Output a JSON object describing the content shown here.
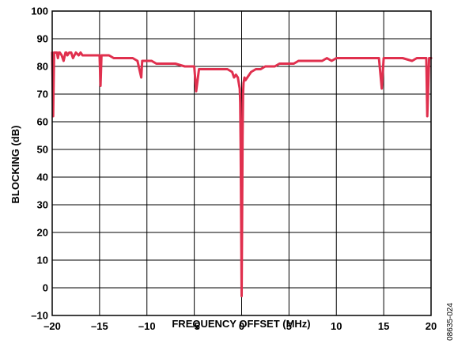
{
  "chart_data": {
    "type": "line",
    "title": "",
    "xlabel": "FREQUENCY OFFSET (MHz)",
    "ylabel": "BLOCKING (dB)",
    "xlim": [
      -20,
      20
    ],
    "ylim": [
      -10,
      100
    ],
    "x_ticks": [
      -20,
      -15,
      -10,
      -5,
      0,
      5,
      10,
      15,
      20
    ],
    "x_tick_labels": [
      "–20",
      "–15",
      "–10",
      "–5",
      "0",
      "5",
      "10",
      "15",
      "20"
    ],
    "y_ticks": [
      -10,
      0,
      10,
      20,
      30,
      40,
      50,
      60,
      70,
      80,
      90,
      100
    ],
    "y_tick_labels": [
      "–10",
      "0",
      "10",
      "20",
      "30",
      "40",
      "50",
      "60",
      "70",
      "80",
      "90",
      "100"
    ],
    "grid": true,
    "legend": "none",
    "series_color": "#e0304e",
    "figure_id": "08635-024",
    "series": [
      {
        "x": [
          -20.0,
          -19.9,
          -19.8,
          -19.7,
          -19.5,
          -19.4,
          -19.3,
          -19.2,
          -19.0,
          -18.8,
          -18.6,
          -18.5,
          -18.4,
          -18.2,
          -18.0,
          -17.8,
          -17.5,
          -17.2,
          -17.0,
          -16.8,
          -16.5,
          -16.2,
          -16.0,
          -15.5,
          -15.0,
          -14.9,
          -14.8,
          -14.5,
          -14.0,
          -13.5,
          -13.0,
          -12.5,
          -12.0,
          -11.5,
          -11.0,
          -10.6,
          -10.5,
          -10.0,
          -9.5,
          -9.0,
          -8.5,
          -8.0,
          -7.0,
          -6.0,
          -5.0,
          -4.8,
          -4.5,
          -4.0,
          -3.5,
          -3.0,
          -2.5,
          -2.0,
          -1.5,
          -1.0,
          -0.8,
          -0.6,
          -0.4,
          -0.3,
          -0.2,
          -0.15,
          -0.1,
          -0.05,
          0.0,
          0.05,
          0.1,
          0.15,
          0.2,
          0.3,
          0.4,
          0.6,
          0.8,
          1.0,
          1.5,
          2.0,
          2.5,
          3.0,
          3.5,
          4.0,
          4.5,
          5.0,
          5.5,
          6.0,
          7.0,
          8.0,
          8.5,
          9.0,
          9.5,
          10.0,
          10.5,
          11.0,
          12.0,
          13.0,
          14.0,
          14.5,
          14.8,
          15.0,
          15.5,
          16.0,
          17.0,
          18.0,
          18.5,
          19.0,
          19.4,
          19.5,
          19.6,
          19.8,
          20.0
        ],
        "y": [
          85,
          62,
          85,
          85,
          85,
          83,
          85,
          85,
          84,
          82,
          85,
          85,
          84,
          85,
          85,
          83,
          85,
          84,
          85,
          84,
          84,
          84,
          84,
          84,
          84,
          73,
          84,
          84,
          84,
          83,
          83,
          83,
          83,
          83,
          82,
          76,
          82,
          82,
          82,
          81,
          81,
          81,
          81,
          80,
          80,
          71,
          79,
          79,
          79,
          79,
          79,
          79,
          79,
          78,
          76,
          77,
          76,
          74,
          72,
          67,
          50,
          25,
          -3,
          25,
          55,
          70,
          74,
          76,
          75,
          76,
          77,
          78,
          79,
          79,
          80,
          80,
          80,
          81,
          81,
          81,
          81,
          82,
          82,
          82,
          82,
          83,
          82,
          83,
          83,
          83,
          83,
          83,
          83,
          83,
          72,
          83,
          83,
          83,
          83,
          82,
          83,
          83,
          83,
          83,
          62,
          83,
          83
        ]
      }
    ]
  }
}
